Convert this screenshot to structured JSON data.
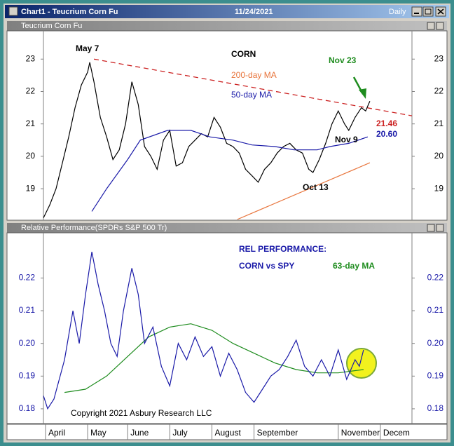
{
  "window": {
    "title": "Chart1 - Teucrium Corn Fu",
    "date": "11/24/2021",
    "period": "Daily"
  },
  "chart_data": [
    {
      "type": "line",
      "title": "Teucrium Corn Fu",
      "headline": "CORN",
      "xlim": [
        0,
        175
      ],
      "ylim": [
        18.05,
        23.85
      ],
      "yticks": [
        19,
        20,
        21,
        22,
        23
      ],
      "tick_color": "#000000",
      "annotations": [
        "May 7",
        "Nov 23",
        "Nov 9",
        "Oct 13"
      ],
      "trendline": {
        "color": "#cc2222",
        "x": [
          24,
          175
        ],
        "values": [
          23.0,
          21.25
        ],
        "last_value": 21.46
      },
      "series": [
        {
          "color": "#000000",
          "x": [
            0,
            3,
            6,
            9,
            12,
            15,
            18,
            21,
            22,
            24,
            27,
            30,
            33,
            36,
            39,
            42,
            45,
            48,
            51,
            54,
            57,
            60,
            63,
            66,
            69,
            72,
            75,
            78,
            81,
            84,
            87,
            90,
            93,
            96,
            99,
            102,
            105,
            108,
            111,
            114,
            117,
            120,
            123,
            126,
            128,
            131,
            134,
            137,
            140,
            143,
            145,
            148,
            151,
            153,
            155
          ],
          "values": [
            18.1,
            18.5,
            19.0,
            19.8,
            20.6,
            21.5,
            22.2,
            22.6,
            22.9,
            22.3,
            21.2,
            20.6,
            19.9,
            20.2,
            21.0,
            22.3,
            21.6,
            20.3,
            20.0,
            19.6,
            20.5,
            20.8,
            19.7,
            19.8,
            20.3,
            20.5,
            20.7,
            20.6,
            21.2,
            20.9,
            20.4,
            20.3,
            20.1,
            19.6,
            19.4,
            19.2,
            19.6,
            19.8,
            20.1,
            20.3,
            20.4,
            20.2,
            20.1,
            19.6,
            19.5,
            19.9,
            20.4,
            21.0,
            21.4,
            21.0,
            20.8,
            21.2,
            21.5,
            21.4,
            21.7
          ]
        },
        {
          "name": "200-day MA",
          "color": "#e8743b",
          "x": [
            92,
            155
          ],
          "values": [
            18.05,
            19.8
          ]
        },
        {
          "name": "50-day MA",
          "color": "#1a1aa8",
          "x": [
            23,
            30,
            40,
            46,
            59,
            70,
            79,
            90,
            99,
            110,
            119,
            130,
            136,
            145,
            154
          ],
          "values": [
            18.3,
            19.0,
            19.9,
            20.5,
            20.8,
            20.8,
            20.6,
            20.5,
            20.35,
            20.3,
            20.2,
            20.2,
            20.3,
            20.4,
            20.6
          ],
          "last_value": {
            "value": 20.6,
            "label": "20.60"
          }
        }
      ]
    },
    {
      "type": "line",
      "title": "Relative Performance(SPDRs S&P 500 Tr)",
      "headline": [
        "REL PERFORMANCE:",
        "CORN vs SPY"
      ],
      "copyright": "Copyright 2021 Asbury Research LLC",
      "xlim": [
        0,
        175
      ],
      "xticks": [
        {
          "value": 1,
          "label": "April"
        },
        {
          "value": 21,
          "label": "May"
        },
        {
          "value": 40,
          "label": "June"
        },
        {
          "value": 60,
          "label": "July"
        },
        {
          "value": 80,
          "label": "August"
        },
        {
          "value": 100,
          "label": "September"
        },
        {
          "value": 140,
          "label": "November"
        },
        {
          "value": 160,
          "label": "Decem"
        }
      ],
      "ylim": [
        0.1757,
        0.2336
      ],
      "yticks": [
        0.18,
        0.19,
        {
          "value": 0.2,
          "label": "0.20"
        },
        0.21,
        0.22
      ],
      "tick_color": "#1a1aa8",
      "series": [
        {
          "name": "63-day MA",
          "color": "#1e8c1e",
          "x": [
            10,
            20,
            30,
            40,
            50,
            60,
            70,
            80,
            90,
            100,
            110,
            120,
            130,
            140,
            152
          ],
          "values": [
            0.185,
            0.186,
            0.19,
            0.196,
            0.202,
            0.205,
            0.206,
            0.204,
            0.2,
            0.197,
            0.194,
            0.192,
            0.191,
            0.191,
            0.192
          ]
        },
        {
          "color": "#1a1aa8",
          "x": [
            0,
            2,
            5,
            10,
            14,
            17,
            20,
            23,
            26,
            29,
            32,
            35,
            38,
            42,
            45,
            48,
            52,
            56,
            60,
            64,
            68,
            72,
            76,
            80,
            84,
            88,
            92,
            96,
            100,
            104,
            108,
            112,
            116,
            120,
            124,
            128,
            132,
            136,
            140,
            144,
            148,
            150,
            152
          ],
          "values": [
            0.184,
            0.18,
            0.183,
            0.195,
            0.21,
            0.2,
            0.215,
            0.228,
            0.218,
            0.21,
            0.2,
            0.196,
            0.21,
            0.223,
            0.215,
            0.2,
            0.205,
            0.193,
            0.187,
            0.2,
            0.195,
            0.202,
            0.196,
            0.199,
            0.19,
            0.197,
            0.192,
            0.185,
            0.182,
            0.186,
            0.19,
            0.192,
            0.196,
            0.201,
            0.193,
            0.19,
            0.195,
            0.19,
            0.198,
            0.189,
            0.195,
            0.193,
            0.198
          ]
        }
      ]
    }
  ]
}
